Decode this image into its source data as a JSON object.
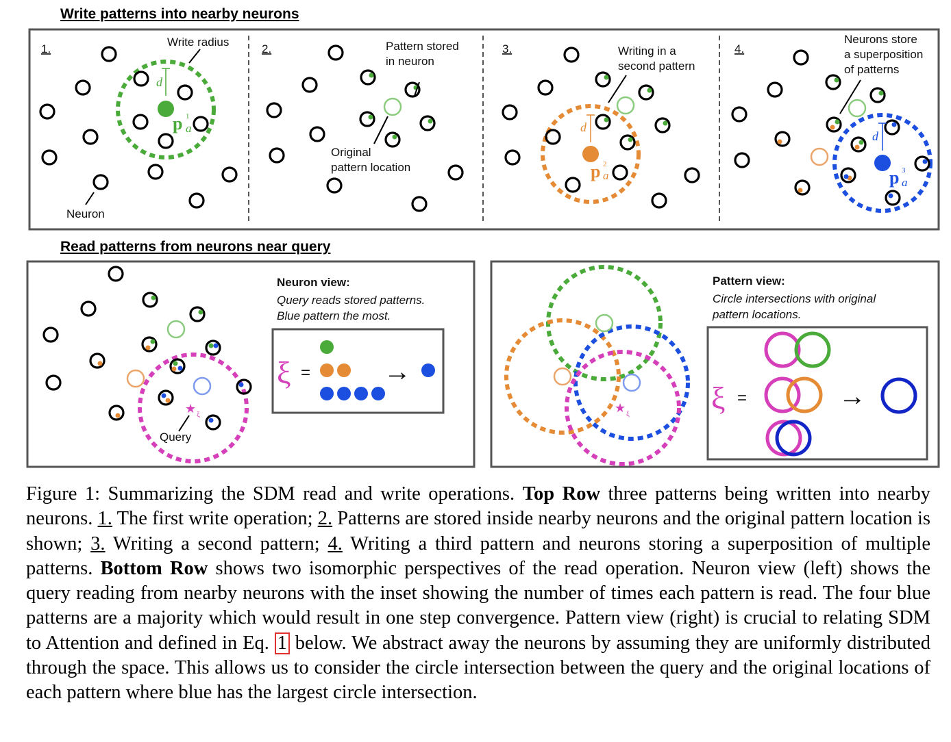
{
  "write_section": {
    "title": "Write patterns into nearby neurons",
    "panels": [
      {
        "number": "1.",
        "callout_write_radius": "Write radius",
        "callout_neuron": "Neuron",
        "radius_symbol": "d",
        "pattern_label": "p",
        "pattern_sub": "a",
        "pattern_sup": "1"
      },
      {
        "number": "2.",
        "callout_stored_line1": "Pattern stored",
        "callout_stored_line2": "in neuron",
        "callout_original_line1": "Original",
        "callout_original_line2": "pattern location"
      },
      {
        "number": "3.",
        "callout_line1": "Writing in a",
        "callout_line2": "second pattern",
        "radius_symbol": "d",
        "pattern_label": "p",
        "pattern_sub": "a",
        "pattern_sup": "2"
      },
      {
        "number": "4.",
        "callout_line1": "Neurons store",
        "callout_line2": "a superposition",
        "callout_line3": "of patterns",
        "radius_symbol": "d",
        "pattern_label": "p",
        "pattern_sub": "a",
        "pattern_sup": "3"
      }
    ]
  },
  "read_section": {
    "title": "Read patterns from neurons near query",
    "neuron_view": {
      "heading": "Neuron view:",
      "desc_line1": "Query reads stored patterns.",
      "desc_line2": "Blue pattern the most.",
      "query_label": "Query",
      "query_symbol": "★",
      "xi_symbol": "ξ",
      "xi_sub": "ξ",
      "equals": "=",
      "arrow": "→"
    },
    "pattern_view": {
      "heading": "Pattern view:",
      "desc_line1": "Circle intersections with original",
      "desc_line2": "pattern locations.",
      "query_symbol": "★",
      "xi_symbol": "ξ",
      "xi_sub": "ξ",
      "equals": "=",
      "arrow": "→"
    }
  },
  "colors": {
    "green": "#4aab3a",
    "orange": "#e58a35",
    "blue": "#1c4fe0",
    "magenta": "#d63fba",
    "dark_blue": "#1226c8",
    "frame": "#555555"
  },
  "caption": {
    "fig_label": "Figure 1:",
    "s1": " Summarizing the SDM read and write operations. ",
    "top_row": "Top Row",
    "s2": " three patterns being written into nearby neurons. ",
    "n1": "1.",
    "s3": " The first write operation; ",
    "n2": "2.",
    "s4": " Patterns are stored inside nearby neurons and the original pattern location is shown; ",
    "n3": "3.",
    "s5": " Writing a second pattern; ",
    "n4": "4.",
    "s6": " Writing a third pattern and neurons storing a superposition of multiple patterns. ",
    "bottom_row": "Bottom Row",
    "s7": " shows two isomorphic perspectives of the read operation. Neuron view (left) shows the query reading from nearby neurons with the inset showing the number of times each pattern is read. The four blue patterns are a majority which would result in one step convergence. Pattern view (right) is crucial to relating SDM to Attention and defined in Eq. ",
    "eq_ref": "1",
    "s8": " below. We abstract away the neurons by assuming they are uniformly distributed through the space. This allows us to consider the circle intersection between the query and the original locations of each pattern where blue has the largest circle intersection."
  }
}
